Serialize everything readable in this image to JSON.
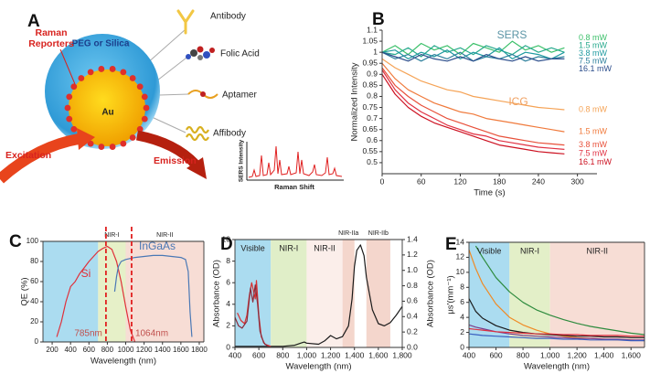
{
  "diagram": {
    "label": "A",
    "raman_reporters": [
      "Raman",
      "Reporters"
    ],
    "shell": "PEG or Silica",
    "core": "Au",
    "ligands": [
      "Antibody",
      "Folic Acid",
      "Aptamer",
      "Affibody"
    ],
    "excitation": "Excitation",
    "emission": "Emission",
    "inset": {
      "y_label": "SERS Intensity",
      "x_label": "Raman Shift"
    }
  },
  "chart_data": [
    {
      "type": "line",
      "label": "B",
      "y_label": "Normalized Intensity",
      "x_label": "Time (s)",
      "xlim": [
        0,
        330
      ],
      "xticks": [
        0,
        60,
        120,
        180,
        240,
        300
      ],
      "ylim": [
        0.45,
        1.1
      ],
      "yticks": [
        0.5,
        0.55,
        0.6,
        0.65,
        0.7,
        0.75,
        0.8,
        0.85,
        0.9,
        0.95,
        1,
        1.05,
        1.1
      ],
      "x": [
        0,
        20,
        40,
        60,
        80,
        100,
        120,
        140,
        160,
        180,
        200,
        220,
        240,
        260,
        280
      ],
      "groups": [
        {
          "name": "SERS",
          "color": "#5b95a6",
          "series": [
            {
              "name": "0.8 mW",
              "color": "#3cc06a",
              "values": [
                1.0,
                1.03,
                0.99,
                1.04,
                1.01,
                1.03,
                0.99,
                1.04,
                1.02,
                1.0,
                1.05,
                1.01,
                1.03,
                1.0,
                1.02
              ]
            },
            {
              "name": "1.5 mW",
              "color": "#26a98c",
              "values": [
                1.0,
                0.99,
                1.02,
                0.98,
                1.03,
                1.0,
                1.02,
                0.99,
                1.03,
                1.01,
                0.99,
                1.03,
                1.0,
                1.02,
                1.0
              ]
            },
            {
              "name": "3.8 mW",
              "color": "#1e9aa0",
              "values": [
                1.0,
                1.01,
                0.97,
                1.0,
                0.98,
                1.01,
                0.97,
                1.0,
                0.98,
                1.02,
                0.97,
                1.0,
                0.99,
                0.97,
                1.0
              ]
            },
            {
              "name": "7.5 mW",
              "color": "#2d7f9c",
              "values": [
                1.0,
                0.97,
                0.99,
                0.96,
                0.99,
                0.97,
                1.0,
                0.96,
                0.98,
                0.97,
                0.99,
                0.96,
                0.98,
                0.97,
                0.98
              ]
            },
            {
              "name": "16.1 mW",
              "color": "#2c4e8c",
              "values": [
                1.0,
                0.98,
                0.96,
                0.99,
                0.97,
                0.96,
                0.98,
                0.96,
                0.99,
                0.97,
                0.96,
                0.98,
                0.96,
                0.97,
                0.97
              ]
            }
          ]
        },
        {
          "name": "ICG",
          "color": "#f0a060",
          "series": [
            {
              "name": "0.8 mW",
              "color": "#f5a356",
              "values": [
                0.97,
                0.93,
                0.9,
                0.87,
                0.85,
                0.83,
                0.82,
                0.8,
                0.79,
                0.78,
                0.77,
                0.76,
                0.75,
                0.745,
                0.74
              ]
            },
            {
              "name": "1.5 mW",
              "color": "#f07a3c",
              "values": [
                0.95,
                0.88,
                0.83,
                0.8,
                0.77,
                0.75,
                0.73,
                0.72,
                0.7,
                0.69,
                0.68,
                0.67,
                0.66,
                0.65,
                0.64
              ]
            },
            {
              "name": "3.8 mW",
              "color": "#e8503a",
              "values": [
                0.93,
                0.85,
                0.8,
                0.76,
                0.73,
                0.7,
                0.68,
                0.66,
                0.64,
                0.62,
                0.61,
                0.6,
                0.59,
                0.585,
                0.58
              ]
            },
            {
              "name": "7.5 mW",
              "color": "#e03042",
              "values": [
                0.92,
                0.83,
                0.77,
                0.73,
                0.7,
                0.67,
                0.65,
                0.63,
                0.62,
                0.6,
                0.59,
                0.58,
                0.57,
                0.565,
                0.56
              ]
            },
            {
              "name": "16.1 mW",
              "color": "#cc1020",
              "values": [
                0.9,
                0.81,
                0.75,
                0.71,
                0.68,
                0.66,
                0.64,
                0.62,
                0.6,
                0.58,
                0.57,
                0.56,
                0.55,
                0.545,
                0.54
              ]
            }
          ]
        }
      ]
    },
    {
      "type": "line",
      "label": "C",
      "y_label": "QE (%)",
      "x_label": "Wavelength (nm)",
      "frame": true,
      "region_labels": "above",
      "xlim": [
        100,
        1850
      ],
      "xticks": [
        200,
        400,
        600,
        800,
        1000,
        1200,
        1400,
        1600,
        1800
      ],
      "ylim": [
        0,
        100
      ],
      "yticks": [
        0,
        20,
        40,
        60,
        80,
        100
      ],
      "regions": [
        {
          "start": 100,
          "end": 700,
          "color": "#abdcf0"
        },
        {
          "start": 700,
          "end": 1000,
          "color": "#e6f0c8",
          "label": "NIR-I"
        },
        {
          "start": 1000,
          "end": 1850,
          "color": "#f7ddd5",
          "label": "NIR-II"
        }
      ],
      "vlines": [
        {
          "value": 785,
          "label": "785nm"
        },
        {
          "value": 1064,
          "label": "1064nm"
        }
      ],
      "series": [
        {
          "name": "Si",
          "color": "#e0303a",
          "x": [
            250,
            300,
            350,
            400,
            450,
            500,
            550,
            600,
            650,
            700,
            750,
            800,
            850,
            900,
            950,
            1000,
            1050,
            1100
          ],
          "values": [
            5,
            20,
            40,
            55,
            60,
            68,
            74,
            80,
            85,
            90,
            93,
            95,
            92,
            80,
            60,
            35,
            12,
            0
          ]
        },
        {
          "name": "InGaAs",
          "color": "#4a78b5",
          "x": [
            880,
            900,
            920,
            950,
            1000,
            1100,
            1200,
            1300,
            1400,
            1500,
            1600,
            1650,
            1680,
            1700,
            1720
          ],
          "values": [
            50,
            65,
            75,
            80,
            82,
            84,
            85,
            86,
            86,
            85,
            84,
            82,
            70,
            30,
            5
          ]
        }
      ]
    },
    {
      "type": "line",
      "label": "D",
      "y_label": "Absorbance (OD)",
      "y2_label": "Absorbance (OD)",
      "x_label": "Wavelength (nm)",
      "frame": true,
      "xlim": [
        400,
        1800
      ],
      "xticks": [
        400,
        600,
        800,
        {
          "value": 1000,
          "label": "1,000"
        },
        {
          "value": 1200,
          "label": "1,200"
        },
        {
          "value": 1400,
          "label": "1,400"
        },
        {
          "value": 1600,
          "label": "1,600"
        },
        {
          "value": 1800,
          "label": "1,800"
        }
      ],
      "ylim": [
        0,
        10
      ],
      "yticks": [
        0,
        2,
        4,
        6,
        8,
        10
      ],
      "y2lim": [
        0,
        1.4
      ],
      "y2ticks": [
        {
          "value": 0,
          "label": "0.0"
        },
        0.2,
        0.4,
        0.6,
        0.8,
        {
          "value": 1,
          "label": "1.0"
        },
        1.2,
        1.4
      ],
      "regions": [
        {
          "start": 400,
          "end": 700,
          "color": "#abdcf0",
          "label": "Visible"
        },
        {
          "start": 700,
          "end": 1000,
          "color": "#e0eec8",
          "label": "NIR-I"
        },
        {
          "start": 1000,
          "end": 1300,
          "color": "#fbeeea",
          "label": "NIR-II"
        },
        {
          "start": 1300,
          "end": 1400,
          "color": "#f4d6cc",
          "label": "NIR-IIa"
        },
        {
          "start": 1500,
          "end": 1700,
          "color": "#f4d6cc",
          "label": "NIR-IIb"
        }
      ],
      "series": [
        {
          "color": "#1a1a1a",
          "x": [
            400,
            600,
            800,
            900,
            950,
            980,
            1000,
            1100,
            1150,
            1200,
            1250,
            1300,
            1350,
            1380,
            1400,
            1420,
            1450,
            1480,
            1500,
            1550,
            1600,
            1650,
            1700,
            1750,
            1800
          ],
          "values": [
            0.1,
            0.1,
            0.1,
            0.2,
            0.4,
            0.5,
            0.4,
            0.3,
            0.6,
            1.1,
            0.8,
            1.0,
            2.0,
            4.5,
            7.5,
            9.0,
            9.5,
            8.5,
            6.5,
            3.5,
            2.2,
            2.0,
            2.3,
            3.0,
            3.8
          ]
        },
        {
          "color": "#d83030",
          "x": [
            420,
            450,
            480,
            500,
            520,
            540,
            560,
            570,
            580,
            600,
            620,
            650,
            700
          ],
          "values": [
            3.2,
            2.5,
            2.2,
            3.0,
            4.8,
            6.0,
            5.0,
            4.5,
            6.2,
            3.0,
            1.0,
            0.3,
            0.1
          ]
        },
        {
          "color": "#8a2a3a",
          "axis": "y2",
          "x": [
            400,
            430,
            460,
            500,
            530,
            550,
            570,
            590,
            610,
            640,
            680
          ],
          "values": [
            0.39,
            0.28,
            0.25,
            0.34,
            0.77,
            0.59,
            0.81,
            0.56,
            0.21,
            0.06,
            0.01
          ]
        }
      ]
    },
    {
      "type": "line",
      "label": "E",
      "y_label": "μs′(mm⁻¹)",
      "x_label": "Wavelength (nm)",
      "frame": true,
      "xlim": [
        400,
        1700
      ],
      "xticks": [
        400,
        600,
        800,
        {
          "value": 1000,
          "label": "1,000"
        },
        {
          "value": 1200,
          "label": "1,200"
        },
        {
          "value": 1400,
          "label": "1,400"
        },
        {
          "value": 1600,
          "label": "1,600"
        }
      ],
      "ylim": [
        0,
        14
      ],
      "yticks": [
        0,
        2,
        4,
        6,
        8,
        10,
        12,
        14
      ],
      "regions": [
        {
          "start": 400,
          "end": 700,
          "color": "#abdcf0",
          "label": "Visible"
        },
        {
          "start": 700,
          "end": 1000,
          "color": "#e3efc8",
          "label": "NIR-I"
        },
        {
          "start": 1000,
          "end": 1700,
          "color": "#f7ddd5",
          "label": "NIR-II"
        }
      ],
      "x": [
        400,
        450,
        500,
        600,
        700,
        800,
        900,
        1000,
        1100,
        1200,
        1300,
        1400,
        1500,
        1600,
        1700
      ],
      "series": [
        {
          "color": "#2e8b3e",
          "values": [
            null,
            13.5,
            12,
            9.3,
            7.4,
            6.0,
            5.0,
            4.3,
            3.7,
            3.2,
            2.8,
            2.5,
            2.2,
            1.9,
            1.7
          ]
        },
        {
          "color": "#f08a24",
          "values": [
            13,
            10.5,
            8.5,
            5.8,
            4.0,
            3.0,
            2.3,
            1.8,
            1.5,
            1.3,
            1.2,
            1.1,
            1.0,
            1.0,
            0.9
          ]
        },
        {
          "color": "#1a1a1a",
          "values": [
            6.5,
            4.8,
            3.9,
            2.9,
            2.3,
            2.0,
            1.8,
            1.7,
            1.6,
            1.5,
            1.5,
            1.4,
            1.4,
            1.3,
            1.3
          ]
        },
        {
          "color": "#7a3b8a",
          "values": [
            3.0,
            2.7,
            2.5,
            2.1,
            1.8,
            1.6,
            1.5,
            1.4,
            1.3,
            1.2,
            1.2,
            1.1,
            1.1,
            1.0,
            1.0
          ]
        },
        {
          "color": "#e03040",
          "values": [
            2.5,
            2.4,
            2.3,
            2.1,
            2.0,
            1.9,
            1.8,
            1.8,
            1.7,
            1.7,
            1.6,
            1.6,
            1.6,
            1.5,
            1.5
          ]
        },
        {
          "color": "#3a5fc0",
          "values": [
            1.8,
            1.7,
            1.6,
            1.5,
            1.4,
            1.3,
            1.2,
            1.2,
            1.1,
            1.1,
            1.0,
            1.0,
            1.0,
            0.9,
            0.9
          ]
        }
      ]
    }
  ]
}
